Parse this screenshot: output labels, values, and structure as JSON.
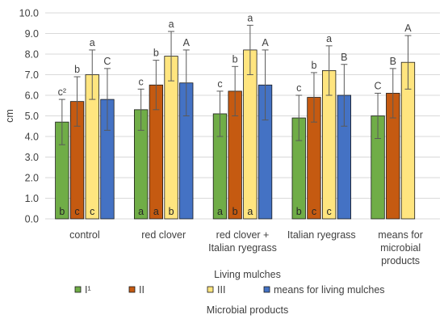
{
  "chart_data": {
    "type": "bar",
    "title": "",
    "ylabel": "cm",
    "xlabel": "Living mulches",
    "legend_title": "Microbial products",
    "legend_position": "bottom",
    "ylim": [
      0,
      10
    ],
    "ystep": 1,
    "grid": "horizontal",
    "y_ticks": [
      "0.0",
      "1.0",
      "2.0",
      "3.0",
      "4.0",
      "5.0",
      "6.0",
      "7.0",
      "8.0",
      "9.0",
      "10.0"
    ],
    "categories": [
      [
        "control"
      ],
      [
        "red clover"
      ],
      [
        "red clover +",
        "Italian ryegrass"
      ],
      [
        "Italian ryegrass"
      ],
      [
        "means for",
        "microbial",
        "products"
      ]
    ],
    "series": [
      {
        "name": "I¹",
        "color": "#70AD47",
        "values": [
          4.7,
          5.3,
          5.1,
          4.9,
          5.0
        ],
        "errors": [
          1.1,
          1.0,
          1.1,
          1.1,
          1.1
        ],
        "top_labels": [
          "c²",
          "c",
          "c",
          "c",
          "C"
        ],
        "inner_labels": [
          "b",
          "a",
          "a",
          "b",
          ""
        ]
      },
      {
        "name": "II",
        "color": "#C55A11",
        "values": [
          5.7,
          6.5,
          6.2,
          5.9,
          6.1
        ],
        "errors": [
          1.2,
          1.2,
          1.2,
          1.2,
          1.2
        ],
        "top_labels": [
          "b",
          "b",
          "b",
          "b",
          "B"
        ],
        "inner_labels": [
          "c",
          "a",
          "b",
          "c",
          ""
        ]
      },
      {
        "name": "III",
        "color": "#FFE57F",
        "values": [
          7.0,
          7.9,
          8.2,
          7.2,
          7.6
        ],
        "errors": [
          1.2,
          1.2,
          1.2,
          1.2,
          1.3
        ],
        "top_labels": [
          "a",
          "a",
          "a",
          "a",
          "A"
        ],
        "inner_labels": [
          "c",
          "b",
          "a",
          "c",
          ""
        ]
      },
      {
        "name": "means for living mulches",
        "color": "#4472C4",
        "values": [
          5.8,
          6.6,
          6.5,
          6.0,
          null
        ],
        "errors": [
          1.5,
          1.6,
          1.7,
          1.5,
          null
        ],
        "top_labels": [
          "C",
          "A",
          "A",
          "B",
          ""
        ],
        "inner_labels": [
          "",
          "",
          "",
          "",
          ""
        ]
      }
    ]
  }
}
